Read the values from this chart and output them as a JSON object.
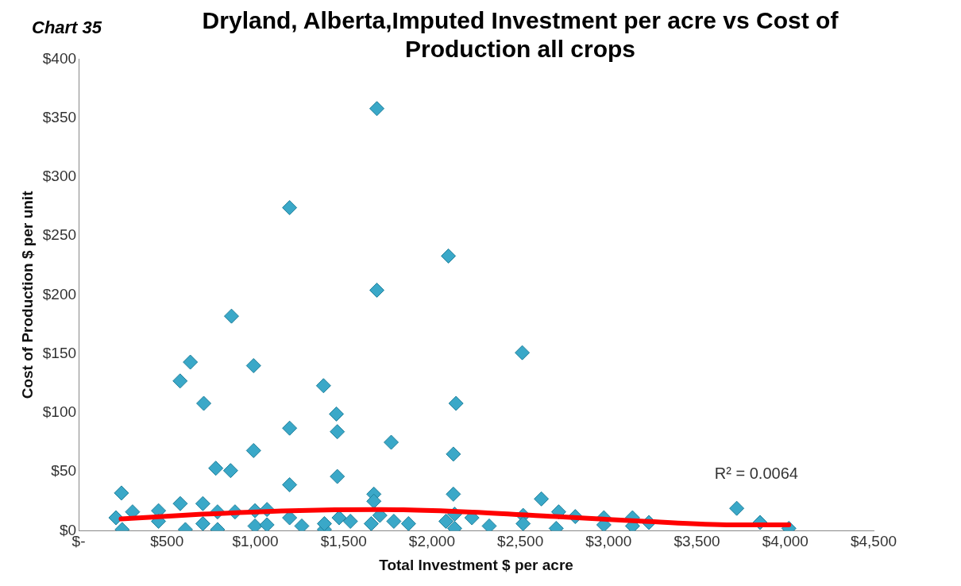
{
  "chart_data": {
    "type": "scatter",
    "title": "Dryland, Alberta,Imputed Investment per acre vs Cost of Production all crops",
    "xlabel": "Total Investment $ per acre",
    "ylabel": "Cost of Production $ per unit",
    "annotations": [
      "Chart 35",
      "R² = 0.0064"
    ],
    "xlim": [
      0,
      4500
    ],
    "xticks": [
      {
        "value": 0,
        "label": "$-"
      },
      {
        "value": 500,
        "label": "$500"
      },
      {
        "value": 1000,
        "label": "$1,000"
      },
      {
        "value": 1500,
        "label": "$1,500"
      },
      {
        "value": 2000,
        "label": "$2,000"
      },
      {
        "value": 2500,
        "label": "$2,500"
      },
      {
        "value": 3000,
        "label": "$3,000"
      },
      {
        "value": 3500,
        "label": "$3,500"
      },
      {
        "value": 4000,
        "label": "$4,000"
      },
      {
        "value": 4500,
        "label": "$4,500"
      }
    ],
    "ylim": [
      0,
      400
    ],
    "yticks": [
      {
        "value": 0,
        "label": "$0"
      },
      {
        "value": 50,
        "label": "$50"
      },
      {
        "value": 100,
        "label": "$100"
      },
      {
        "value": 150,
        "label": "$150"
      },
      {
        "value": 200,
        "label": "$200"
      },
      {
        "value": 250,
        "label": "$250"
      },
      {
        "value": 300,
        "label": "$300"
      },
      {
        "value": 350,
        "label": "$350"
      },
      {
        "value": 400,
        "label": "$400"
      }
    ],
    "grid": false,
    "legend": false,
    "marker": "diamond",
    "series": [
      {
        "color": "#3aa8c8",
        "x": [
          1688,
          1194,
          2093,
          1688,
          865,
          2511,
          632,
          574,
          990,
          1386,
          708,
          2136,
          1459,
          1194,
          990,
          1464,
          1769,
          776,
          860,
          1194,
          1464,
          1671,
          1671,
          242,
          2121,
          2121,
          211,
          246,
          305,
          452,
          452,
          575,
          604,
          703,
          703,
          786,
          786,
          885,
          998,
          998,
          1066,
          1066,
          1194,
          1263,
          1391,
          1391,
          1474,
          1538,
          1656,
          1705,
          1784,
          1867,
          2079,
          2128,
          2128,
          2226,
          2324,
          2516,
          2516,
          2619,
          2717,
          2703,
          2811,
          2973,
          2973,
          3135,
          3135,
          3228,
          3725,
          3857,
          4020
        ],
        "values": [
          358,
          274,
          233,
          204,
          182,
          151,
          143,
          127,
          140,
          123,
          108,
          108,
          99,
          87,
          68,
          84,
          75,
          53,
          51,
          39,
          46,
          31,
          25,
          32,
          65,
          31,
          11,
          1,
          16,
          17,
          8,
          23,
          1,
          23,
          6,
          16,
          1,
          16,
          17,
          4,
          18,
          5,
          11,
          4,
          1,
          6,
          11,
          8,
          6,
          13,
          8,
          6,
          8,
          14,
          2,
          11,
          4,
          13,
          6,
          27,
          16,
          2,
          12,
          11,
          5,
          11,
          4,
          7,
          19,
          7,
          2
        ]
      },
      {
        "type": "line",
        "color": "#ff0000",
        "marker": "none",
        "x": [
          240,
          700,
          1200,
          1700,
          2200,
          2700,
          3200,
          3700,
          4020
        ],
        "values": [
          10,
          14,
          17,
          18,
          16,
          12,
          8,
          5,
          5
        ]
      }
    ]
  }
}
